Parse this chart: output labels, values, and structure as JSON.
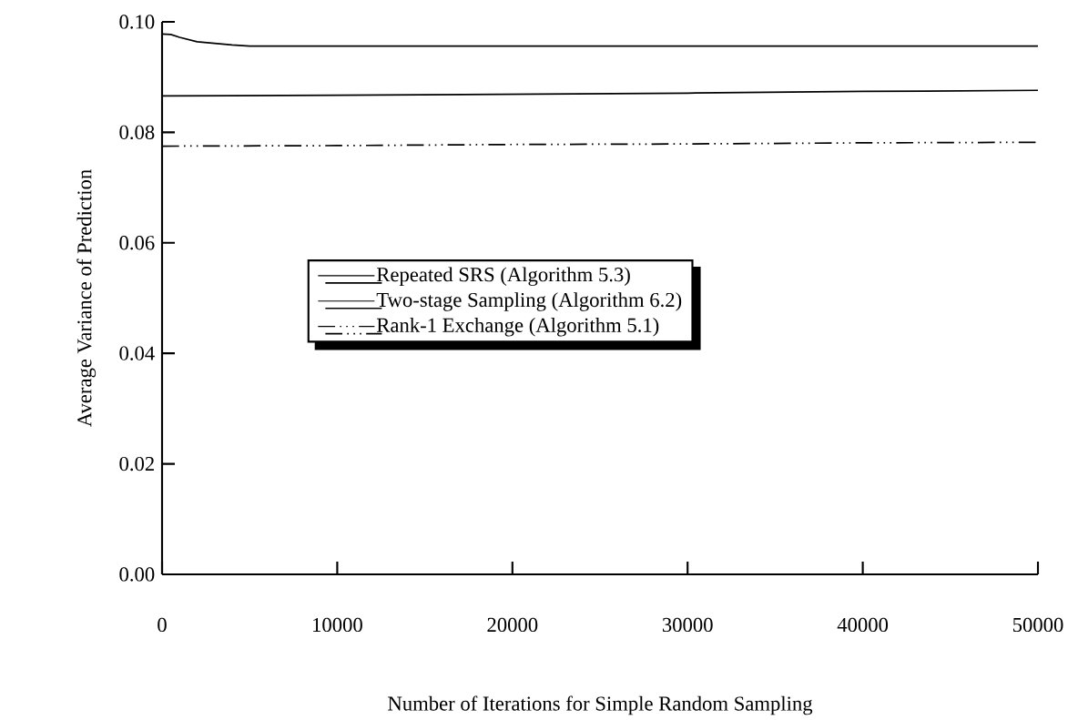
{
  "chart_data": {
    "type": "line",
    "xlabel": "Number of Iterations for Simple Random Sampling",
    "ylabel": "Average Variance of Prediction",
    "series": [
      {
        "name": "Repeated SRS (Algorithm 5.3)",
        "color": "#000000",
        "line_style": "solid",
        "x": [
          0,
          500,
          1000,
          2000,
          3000,
          4000,
          5000,
          10000,
          20000,
          30000,
          40000,
          50000
        ],
        "values": [
          0.0978,
          0.0977,
          0.0972,
          0.0964,
          0.0961,
          0.0958,
          0.0956,
          0.0956,
          0.0956,
          0.0956,
          0.0956,
          0.0956
        ]
      },
      {
        "name": "Two-stage Sampling (Algorithm 6.2)",
        "color": "#000000",
        "line_style": "solid",
        "x": [
          0,
          10000,
          20000,
          30000,
          40000,
          50000
        ],
        "values": [
          0.0866,
          0.0867,
          0.0869,
          0.0871,
          0.0874,
          0.0876
        ]
      },
      {
        "name": "Rank-1 Exchange (Algorithm 5.1)",
        "color": "#000000",
        "line_style": "dashed",
        "x": [
          0,
          10000,
          20000,
          30000,
          40000,
          50000
        ],
        "values": [
          0.0775,
          0.0776,
          0.0778,
          0.0779,
          0.0781,
          0.0782
        ]
      }
    ],
    "xlim": [
      0,
      50000
    ],
    "ylim": [
      0,
      0.1
    ],
    "xticks": [
      0,
      10000,
      20000,
      30000,
      40000,
      50000
    ],
    "yticks": [
      {
        "value": 0,
        "label": "0.00"
      },
      {
        "value": 0.02,
        "label": "0.02"
      },
      {
        "value": 0.04,
        "label": "0.04"
      },
      {
        "value": 0.06,
        "label": "0.06"
      },
      {
        "value": 0.08,
        "label": "0.08"
      },
      {
        "value": 0.1,
        "label": "0.10"
      }
    ],
    "grid": false,
    "legend": "center",
    "marker": "none"
  }
}
